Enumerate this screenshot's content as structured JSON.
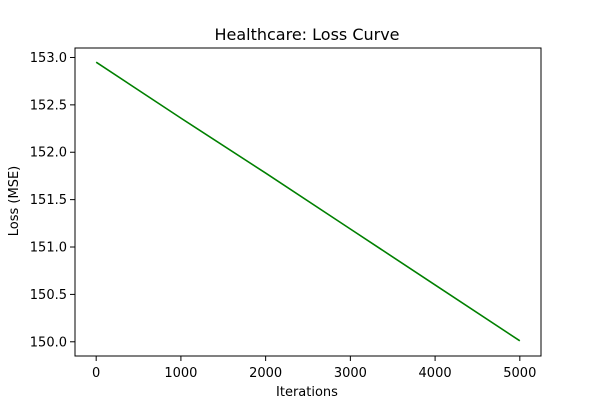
{
  "chart_data": {
    "type": "line",
    "title": "Healthcare: Loss Curve",
    "xlabel": "Iterations",
    "ylabel": "Loss (MSE)",
    "xlim": [
      -250,
      5250
    ],
    "ylim": [
      149.85,
      153.1
    ],
    "xticks": [
      0,
      1000,
      2000,
      3000,
      4000,
      5000
    ],
    "xtick_labels": [
      "0",
      "1000",
      "2000",
      "3000",
      "4000",
      "5000"
    ],
    "yticks": [
      150.0,
      150.5,
      151.0,
      151.5,
      152.0,
      152.5,
      153.0
    ],
    "ytick_labels": [
      "150.0",
      "150.5",
      "151.0",
      "151.5",
      "152.0",
      "152.5",
      "153.0"
    ],
    "grid": false,
    "legend": "none",
    "series": [
      {
        "color": "#008000",
        "x": [
          0,
          1000,
          2000,
          3000,
          4000,
          5000
        ],
        "y": [
          152.95,
          152.36,
          151.78,
          151.19,
          150.6,
          150.01
        ]
      }
    ]
  }
}
